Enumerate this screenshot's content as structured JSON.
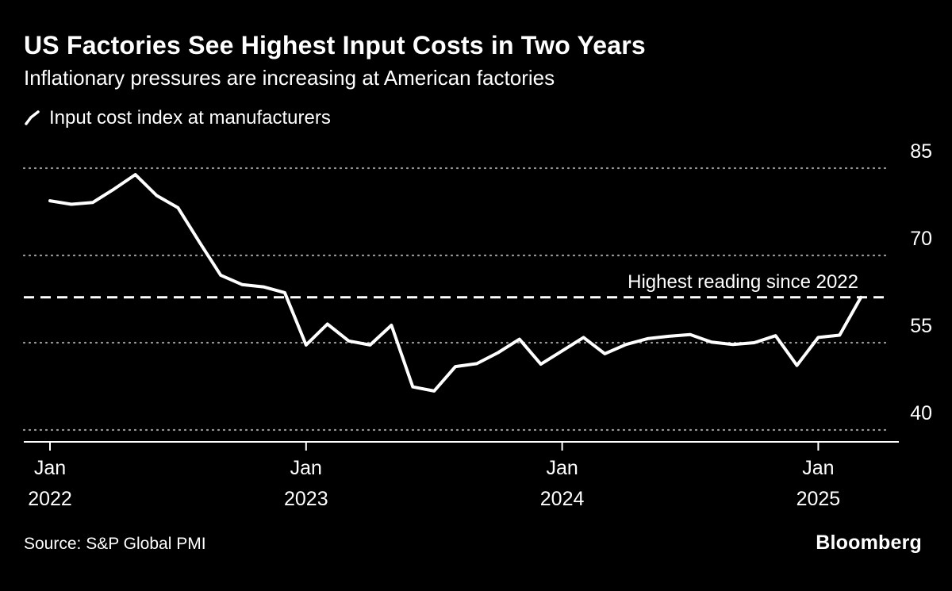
{
  "header": {
    "title": "US Factories See Highest Input Costs in Two Years",
    "subtitle": "Inflationary pressures are increasing at American factories",
    "legend": {
      "label": "Input cost index at manufacturers"
    }
  },
  "footer": {
    "source": "Source: S&P Global PMI",
    "brand": "Bloomberg"
  },
  "colors": {
    "background": "#000000",
    "text": "#ffffff",
    "line": "#ffffff",
    "grid": "#9a9a9a"
  },
  "chart_data": {
    "type": "line",
    "title": "US Factories See Highest Input Costs in Two Years",
    "subtitle": "Inflationary pressures are increasing at American factories",
    "x_start": "2022-01",
    "x_interval": "monthly",
    "x_ticks": [
      {
        "month_index": 0,
        "line1": "Jan",
        "line2": "2022"
      },
      {
        "month_index": 12,
        "line1": "Jan",
        "line2": "2023"
      },
      {
        "month_index": 24,
        "line1": "Jan",
        "line2": "2024"
      },
      {
        "month_index": 36,
        "line1": "Jan",
        "line2": "2025"
      }
    ],
    "y_ticks": [
      85,
      70,
      55,
      40
    ],
    "ylim": [
      38,
      88
    ],
    "grid": "horizontal-dotted",
    "legend_position": "top-left",
    "series": [
      {
        "name": "Input cost index at manufacturers",
        "color": "#ffffff",
        "values": [
          79.4,
          78.8,
          79.1,
          81.4,
          83.9,
          80.3,
          78.2,
          72.3,
          66.6,
          65.0,
          64.6,
          63.6,
          54.6,
          58.2,
          55.3,
          54.6,
          58.0,
          47.4,
          46.7,
          50.9,
          51.4,
          53.3,
          55.6,
          51.3,
          53.6,
          55.9,
          53.1,
          54.7,
          55.7,
          56.1,
          56.4,
          55.1,
          54.7,
          55.0,
          56.2,
          51.1,
          55.9,
          56.3,
          62.8
        ]
      }
    ],
    "annotation": {
      "text": "Highest reading since 2022",
      "value": 62.8,
      "style": "horizontal-dashed-line"
    }
  }
}
